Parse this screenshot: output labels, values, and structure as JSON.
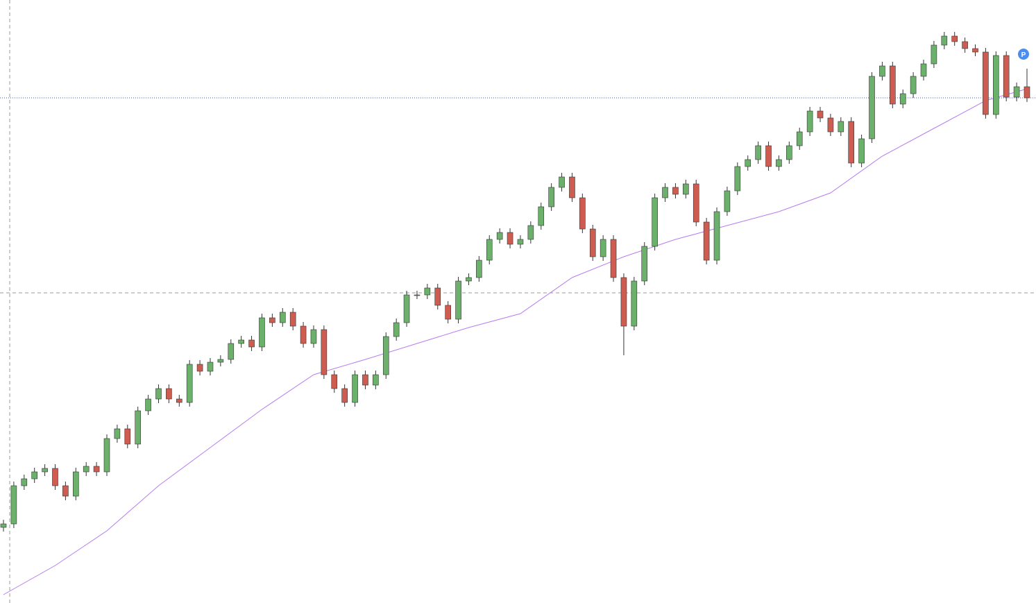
{
  "chart_data": {
    "type": "candlestick",
    "annotation": "P",
    "up_color": "#6bb06b",
    "down_color": "#cf5c50",
    "ma_color": "#b57cf2",
    "price_line_color": "#3a55c8",
    "xlim": [
      0,
      99
    ],
    "ylim": [
      0,
      869
    ],
    "open": [
      109,
      114,
      169,
      179,
      189,
      194,
      169,
      154,
      189,
      197,
      189,
      237,
      251,
      229,
      277,
      294,
      309,
      294,
      289,
      344,
      334,
      347,
      351,
      374,
      379,
      369,
      411,
      404,
      419,
      399,
      374,
      394,
      329,
      309,
      289,
      329,
      314,
      329,
      384,
      404,
      444,
      444,
      454,
      429,
      409,
      464,
      469,
      494,
      524,
      534,
      517,
      524,
      544,
      571,
      599,
      614,
      584,
      539,
      499,
      524,
      469,
      399,
      464,
      514,
      584,
      599,
      589,
      604,
      549,
      494,
      564,
      594,
      629,
      639,
      659,
      629,
      639,
      659,
      679,
      709,
      699,
      679,
      694,
      634,
      669,
      759,
      774,
      719,
      734,
      759,
      777,
      804,
      817,
      809,
      799,
      794,
      704,
      789,
      729,
      744
    ],
    "high": [
      120,
      175,
      185,
      195,
      200,
      200,
      175,
      195,
      203,
      203,
      243,
      257,
      257,
      283,
      300,
      315,
      315,
      300,
      350,
      350,
      353,
      357,
      380,
      385,
      385,
      417,
      417,
      425,
      425,
      405,
      400,
      400,
      335,
      315,
      335,
      335,
      335,
      390,
      410,
      450,
      450,
      460,
      460,
      435,
      470,
      475,
      500,
      530,
      540,
      540,
      530,
      550,
      577,
      605,
      620,
      620,
      590,
      545,
      530,
      530,
      475,
      470,
      520,
      590,
      605,
      605,
      610,
      610,
      555,
      570,
      600,
      635,
      645,
      665,
      665,
      645,
      665,
      685,
      715,
      715,
      705,
      700,
      700,
      675,
      765,
      780,
      780,
      740,
      765,
      783,
      810,
      823,
      823,
      815,
      805,
      800,
      795,
      795,
      750,
      770
    ],
    "low": [
      103,
      108,
      163,
      173,
      183,
      163,
      148,
      148,
      183,
      183,
      183,
      231,
      223,
      223,
      271,
      288,
      288,
      283,
      283,
      328,
      328,
      341,
      345,
      368,
      363,
      363,
      398,
      398,
      393,
      368,
      368,
      323,
      303,
      283,
      283,
      308,
      308,
      323,
      378,
      398,
      438,
      438,
      423,
      403,
      403,
      458,
      463,
      488,
      518,
      511,
      511,
      518,
      538,
      565,
      593,
      578,
      533,
      493,
      493,
      463,
      357,
      393,
      458,
      508,
      578,
      583,
      583,
      543,
      488,
      488,
      558,
      588,
      623,
      633,
      623,
      623,
      633,
      653,
      673,
      693,
      673,
      673,
      628,
      628,
      663,
      753,
      713,
      713,
      728,
      753,
      771,
      798,
      803,
      793,
      788,
      698,
      698,
      723,
      723,
      722
    ],
    "close": [
      114,
      169,
      179,
      189,
      194,
      169,
      154,
      189,
      197,
      189,
      237,
      251,
      229,
      277,
      294,
      309,
      294,
      289,
      344,
      334,
      347,
      351,
      374,
      379,
      369,
      411,
      404,
      419,
      399,
      374,
      394,
      329,
      309,
      289,
      329,
      314,
      329,
      384,
      404,
      444,
      444,
      454,
      429,
      409,
      464,
      469,
      494,
      524,
      534,
      517,
      524,
      544,
      571,
      599,
      614,
      584,
      539,
      499,
      524,
      469,
      399,
      464,
      514,
      584,
      599,
      589,
      604,
      549,
      494,
      564,
      594,
      629,
      639,
      659,
      629,
      639,
      659,
      679,
      709,
      699,
      679,
      694,
      634,
      669,
      759,
      774,
      719,
      734,
      759,
      777,
      804,
      817,
      809,
      799,
      794,
      704,
      789,
      729,
      744,
      728
    ],
    "moving_average": {
      "x": [
        0,
        5,
        10,
        15,
        20,
        25,
        30,
        35,
        40,
        45,
        50,
        55,
        60,
        65,
        70,
        75,
        80,
        85,
        90,
        95,
        99
      ],
      "values": [
        12,
        54,
        104,
        169,
        224,
        279,
        329,
        351,
        374,
        397,
        417,
        469,
        499,
        524,
        544,
        564,
        591,
        644,
        684,
        724,
        741
      ]
    }
  }
}
